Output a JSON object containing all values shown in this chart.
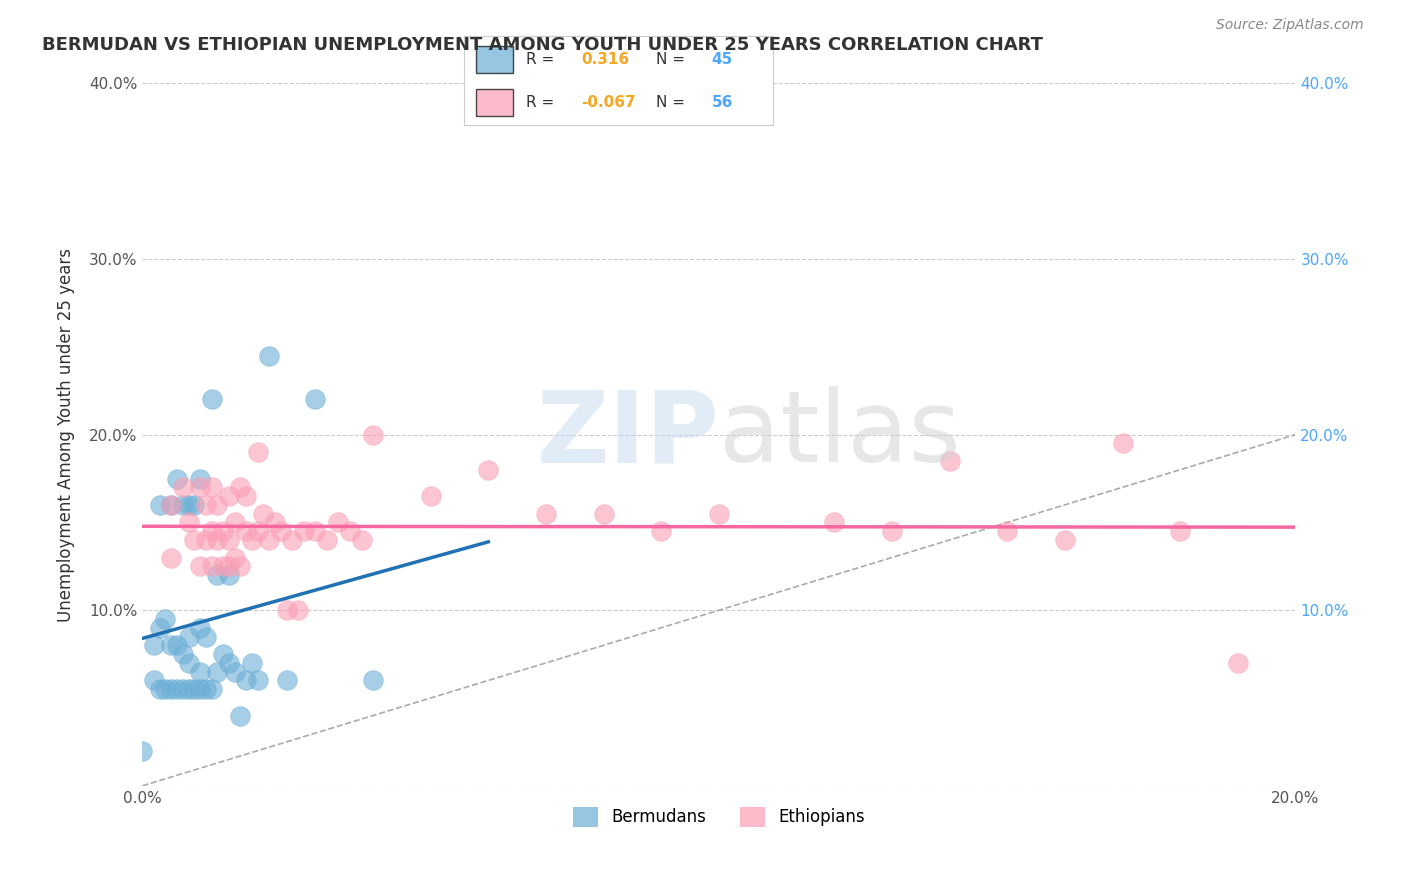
{
  "title": "BERMUDAN VS ETHIOPIAN UNEMPLOYMENT AMONG YOUTH UNDER 25 YEARS CORRELATION CHART",
  "source": "Source: ZipAtlas.com",
  "xlabel_bottom": "",
  "ylabel": "Unemployment Among Youth under 25 years",
  "xlim": [
    0.0,
    0.2
  ],
  "ylim": [
    0.0,
    0.4
  ],
  "xticks": [
    0.0,
    0.04,
    0.08,
    0.12,
    0.16,
    0.2
  ],
  "xtick_labels": [
    "0.0%",
    "",
    "",
    "",
    "",
    "20.0%"
  ],
  "yticks": [
    0.0,
    0.1,
    0.2,
    0.3,
    0.4
  ],
  "ytick_labels_left": [
    "",
    "10.0%",
    "20.0%",
    "30.0%",
    "40.0%"
  ],
  "ytick_labels_right": [
    "",
    "10.0%",
    "20.0%",
    "30.0%",
    "40.0%"
  ],
  "bermuda_R": 0.316,
  "bermuda_N": 45,
  "ethiopia_R": -0.067,
  "ethiopia_N": 56,
  "bermuda_color": "#6baed6",
  "ethiopia_color": "#fa9fb5",
  "bermuda_line_color": "#2171b5",
  "ethiopia_line_color": "#f768a1",
  "legend_box_color": "#f0f0f0",
  "watermark": "ZIPatlas",
  "watermark_color_zip": "#c6dbef",
  "watermark_color_atlas": "#d0d0d0",
  "bermuda_x": [
    0.0,
    0.002,
    0.002,
    0.003,
    0.003,
    0.003,
    0.004,
    0.004,
    0.005,
    0.005,
    0.005,
    0.006,
    0.006,
    0.006,
    0.007,
    0.007,
    0.007,
    0.008,
    0.008,
    0.008,
    0.008,
    0.009,
    0.009,
    0.01,
    0.01,
    0.01,
    0.01,
    0.011,
    0.011,
    0.012,
    0.012,
    0.013,
    0.013,
    0.014,
    0.015,
    0.015,
    0.016,
    0.017,
    0.018,
    0.019,
    0.02,
    0.022,
    0.025,
    0.03,
    0.04
  ],
  "bermuda_y": [
    0.02,
    0.06,
    0.08,
    0.055,
    0.09,
    0.16,
    0.055,
    0.095,
    0.055,
    0.08,
    0.16,
    0.055,
    0.08,
    0.175,
    0.055,
    0.075,
    0.16,
    0.055,
    0.07,
    0.085,
    0.16,
    0.055,
    0.16,
    0.055,
    0.065,
    0.09,
    0.175,
    0.055,
    0.085,
    0.055,
    0.22,
    0.065,
    0.12,
    0.075,
    0.12,
    0.07,
    0.065,
    0.04,
    0.06,
    0.07,
    0.06,
    0.245,
    0.06,
    0.22,
    0.06
  ],
  "ethiopia_x": [
    0.005,
    0.005,
    0.007,
    0.008,
    0.009,
    0.01,
    0.01,
    0.011,
    0.011,
    0.012,
    0.012,
    0.012,
    0.013,
    0.013,
    0.014,
    0.014,
    0.015,
    0.015,
    0.015,
    0.016,
    0.016,
    0.017,
    0.017,
    0.018,
    0.018,
    0.019,
    0.02,
    0.02,
    0.021,
    0.022,
    0.023,
    0.024,
    0.025,
    0.026,
    0.027,
    0.028,
    0.03,
    0.032,
    0.034,
    0.036,
    0.038,
    0.04,
    0.05,
    0.06,
    0.07,
    0.08,
    0.09,
    0.1,
    0.12,
    0.13,
    0.14,
    0.15,
    0.16,
    0.17,
    0.18,
    0.19
  ],
  "ethiopia_y": [
    0.13,
    0.16,
    0.17,
    0.15,
    0.14,
    0.17,
    0.125,
    0.16,
    0.14,
    0.125,
    0.145,
    0.17,
    0.14,
    0.16,
    0.125,
    0.145,
    0.14,
    0.125,
    0.165,
    0.13,
    0.15,
    0.125,
    0.17,
    0.145,
    0.165,
    0.14,
    0.19,
    0.145,
    0.155,
    0.14,
    0.15,
    0.145,
    0.1,
    0.14,
    0.1,
    0.145,
    0.145,
    0.14,
    0.15,
    0.145,
    0.14,
    0.2,
    0.165,
    0.18,
    0.155,
    0.155,
    0.145,
    0.155,
    0.15,
    0.145,
    0.185,
    0.145,
    0.14,
    0.195,
    0.145,
    0.07
  ]
}
